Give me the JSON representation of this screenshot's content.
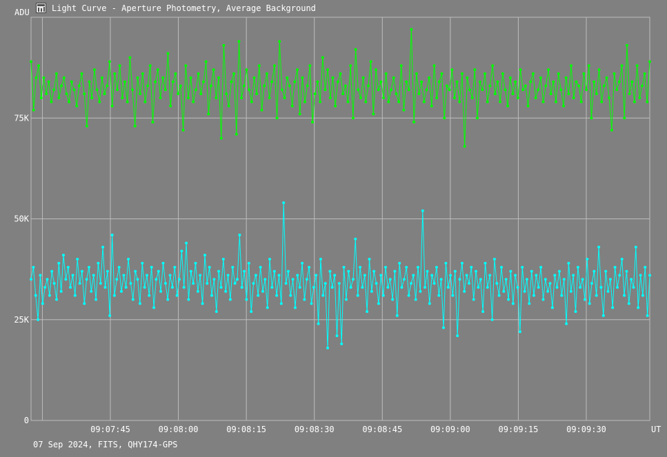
{
  "window": {
    "title": "Light Curve - Aperture Photometry, Average Background",
    "footer": "07 Sep 2024, FITS, QHY174-GPS",
    "app_icon": "chart-window-icon"
  },
  "colors": {
    "background": "#808080",
    "grid": "#bdbdbd",
    "text": "#ffffff",
    "series_green": "#00ff00",
    "series_cyan": "#00ffff"
  },
  "chart_data": {
    "type": "line",
    "ylabel": "ADU",
    "xlabel": "UT",
    "ylim": [
      0,
      100000
    ],
    "xlim_seconds_from": "09:07:27",
    "y_ticks": [
      {
        "value": 0,
        "label": "0"
      },
      {
        "value": 25000,
        "label": "25K"
      },
      {
        "value": 50000,
        "label": "50K"
      },
      {
        "value": 75000,
        "label": "75K"
      }
    ],
    "x_ticks": [
      {
        "time": "09:07:45",
        "label": "09:07:45"
      },
      {
        "time": "09:08:00",
        "label": "09:08:00"
      },
      {
        "time": "09:08:15",
        "label": "09:08:15"
      },
      {
        "time": "09:08:30",
        "label": "09:08:30"
      },
      {
        "time": "09:08:45",
        "label": "09:08:45"
      },
      {
        "time": "09:09:00",
        "label": "09:09:00"
      },
      {
        "time": "09:09:15",
        "label": "09:09:15"
      },
      {
        "time": "09:09:30",
        "label": "09:09:30"
      }
    ],
    "x_start": "09:07:27.5",
    "x_end": "09:09:44",
    "grid": true,
    "series": [
      {
        "color": "#00ff00",
        "x_start": "09:07:27.5",
        "x_end": "09:09:44",
        "values": [
          89000,
          77000,
          85000,
          88000,
          80000,
          85000,
          81000,
          84000,
          79000,
          82000,
          86000,
          80000,
          83000,
          85000,
          81000,
          79000,
          84000,
          82000,
          78000,
          83000,
          86000,
          81000,
          73000,
          84000,
          80000,
          87000,
          82000,
          79000,
          85000,
          81000,
          83000,
          89000,
          78000,
          86000,
          82000,
          88000,
          80000,
          84000,
          79000,
          90000,
          82000,
          73000,
          85000,
          81000,
          86000,
          79000,
          83000,
          88000,
          74000,
          84000,
          87000,
          80000,
          85000,
          82000,
          91000,
          78000,
          84000,
          86000,
          81000,
          83000,
          72000,
          88000,
          80000,
          85000,
          79000,
          82000,
          86000,
          81000,
          84000,
          89000,
          76000,
          83000,
          87000,
          80000,
          85000,
          70000,
          93000,
          81000,
          78000,
          84000,
          86000,
          71000,
          94000,
          80000,
          83000,
          87000,
          82000,
          79000,
          85000,
          81000,
          88000,
          77000,
          83000,
          86000,
          80000,
          84000,
          88000,
          75000,
          94000,
          82000,
          80000,
          85000,
          83000,
          78000,
          84000,
          87000,
          76000,
          85000,
          79000,
          83000,
          88000,
          74000,
          81000,
          84000,
          79000,
          90000,
          82000,
          87000,
          80000,
          85000,
          78000,
          84000,
          86000,
          81000,
          83000,
          79000,
          88000,
          75000,
          92000,
          82000,
          80000,
          85000,
          79000,
          83000,
          89000,
          76000,
          87000,
          82000,
          84000,
          80000,
          86000,
          79000,
          82000,
          85000,
          81000,
          79000,
          88000,
          77000,
          84000,
          82000,
          97000,
          74000,
          86000,
          81000,
          84000,
          79000,
          82000,
          85000,
          78000,
          88000,
          80000,
          84000,
          86000,
          75000,
          83000,
          82000,
          87000,
          80000,
          84000,
          79000,
          86000,
          68000,
          85000,
          82000,
          80000,
          87000,
          75000,
          84000,
          82000,
          86000,
          79000,
          83000,
          88000,
          81000,
          84000,
          79000,
          86000,
          82000,
          78000,
          85000,
          81000,
          84000,
          80000,
          87000,
          82000,
          83000,
          78000,
          84000,
          86000,
          80000,
          82000,
          85000,
          79000,
          83000,
          87000,
          81000,
          84000,
          79000,
          86000,
          82000,
          78000,
          85000,
          81000,
          88000,
          80000,
          84000,
          83000,
          79000,
          86000,
          82000,
          88000,
          75000,
          84000,
          81000,
          87000,
          79000,
          83000,
          85000,
          80000,
          72000,
          86000,
          82000,
          84000,
          88000,
          75000,
          93000,
          81000,
          84000,
          79000,
          88000,
          80000,
          83000,
          86000,
          79000,
          89000
        ]
      },
      {
        "color": "#00ffff",
        "x_start": "09:07:27.5",
        "x_end": "09:09:44",
        "values": [
          35000,
          38000,
          31000,
          25000,
          36000,
          29000,
          33000,
          35000,
          31000,
          37000,
          34000,
          30000,
          39000,
          32000,
          41000,
          35000,
          38000,
          33000,
          36000,
          31000,
          40000,
          34000,
          37000,
          29000,
          35000,
          38000,
          32000,
          36000,
          30000,
          39000,
          34000,
          43000,
          33000,
          37000,
          26000,
          46000,
          31000,
          35000,
          38000,
          32000,
          36000,
          33000,
          40000,
          34000,
          30000,
          37000,
          35000,
          29000,
          39000,
          33000,
          36000,
          31000,
          38000,
          28000,
          35000,
          37000,
          32000,
          39000,
          34000,
          30000,
          36000,
          33000,
          38000,
          31000,
          35000,
          42000,
          33000,
          44000,
          30000,
          37000,
          34000,
          39000,
          32000,
          36000,
          29000,
          41000,
          34000,
          38000,
          31000,
          35000,
          27000,
          37000,
          33000,
          40000,
          32000,
          36000,
          30000,
          38000,
          34000,
          35000,
          46000,
          33000,
          37000,
          30000,
          39000,
          27000,
          34000,
          36000,
          31000,
          38000,
          32000,
          35000,
          28000,
          40000,
          33000,
          37000,
          31000,
          36000,
          29000,
          54000,
          34000,
          37000,
          31000,
          35000,
          28000,
          36000,
          33000,
          39000,
          30000,
          35000,
          38000,
          29000,
          33000,
          36000,
          24000,
          40000,
          31000,
          34000,
          18000,
          37000,
          33000,
          36000,
          21000,
          34000,
          19000,
          38000,
          30000,
          37000,
          33000,
          35000,
          45000,
          31000,
          38000,
          33000,
          36000,
          27000,
          40000,
          32000,
          37000,
          34000,
          29000,
          36000,
          31000,
          38000,
          33000,
          35000,
          30000,
          37000,
          26000,
          39000,
          33000,
          35000,
          38000,
          31000,
          34000,
          36000,
          30000,
          38000,
          32000,
          52000,
          33000,
          37000,
          29000,
          36000,
          34000,
          38000,
          31000,
          35000,
          23000,
          39000,
          33000,
          36000,
          31000,
          37000,
          21000,
          35000,
          39000,
          32000,
          36000,
          34000,
          38000,
          30000,
          37000,
          33000,
          35000,
          27000,
          39000,
          33000,
          36000,
          25000,
          40000,
          34000,
          31000,
          38000,
          32000,
          35000,
          30000,
          37000,
          29000,
          36000,
          33000,
          22000,
          38000,
          32000,
          35000,
          29000,
          37000,
          31000,
          36000,
          33000,
          38000,
          30000,
          35000,
          32000,
          34000,
          28000,
          36000,
          33000,
          37000,
          31000,
          35000,
          24000,
          39000,
          32000,
          36000,
          27000,
          38000,
          33000,
          35000,
          30000,
          40000,
          29000,
          34000,
          37000,
          31000,
          43000,
          33000,
          26000,
          37000,
          32000,
          35000,
          28000,
          38000,
          33000,
          36000,
          40000,
          31000,
          37000,
          29000,
          35000,
          33000,
          43000,
          28000,
          36000,
          31000,
          38000,
          26000,
          36000
        ]
      }
    ]
  }
}
